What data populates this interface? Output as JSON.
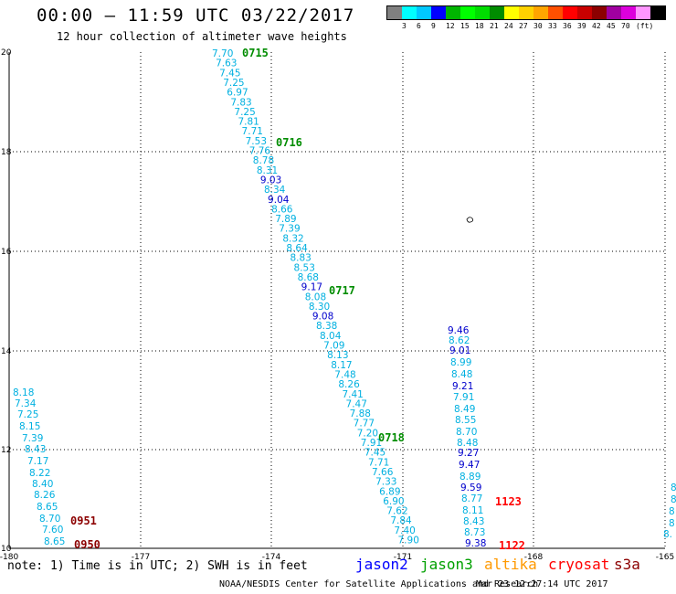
{
  "header": {
    "title": "00:00 – 11:59 UTC 03/22/2017",
    "subtitle": "12 hour collection of altimeter wave heights"
  },
  "color_scale": {
    "colors": [
      "#808080",
      "#00ffff",
      "#00c8ff",
      "#0000ff",
      "#00b400",
      "#00ff00",
      "#00dc00",
      "#008c00",
      "#ffff00",
      "#ffd200",
      "#ffa500",
      "#ff5000",
      "#ff0000",
      "#c80000",
      "#8c0000",
      "#a000a0",
      "#dc00dc",
      "#ff96ff",
      "#000000"
    ],
    "labels": [
      "3",
      "6",
      "9",
      "12",
      "15",
      "18",
      "21",
      "24",
      "27",
      "30",
      "33",
      "36",
      "39",
      "42",
      "45",
      "70",
      "(ft)"
    ]
  },
  "map": {
    "lat_labels": [
      "20",
      "18",
      "16",
      "14",
      "12",
      "10"
    ],
    "lon_labels": [
      "-180",
      "-177",
      "-174",
      "-171",
      "-168",
      "-165"
    ],
    "track_colors": {
      "jason2": "#0000ff",
      "jason3": "#008c00",
      "altika": "#ffa500",
      "cryosat": "#ff0000",
      "s3a": "#8c0000"
    },
    "observations": [
      {
        "v": "7.70",
        "c": "#00b0e0"
      },
      {
        "v": "7.63",
        "c": "#00b0e0"
      },
      {
        "v": "7.45",
        "c": "#00b0e0"
      },
      {
        "v": "7.25",
        "c": "#00b0e0"
      },
      {
        "v": "6.97",
        "c": "#00b0e0"
      },
      {
        "v": "7.83",
        "c": "#00b0e0"
      },
      {
        "v": "7.25",
        "c": "#00b0e0"
      },
      {
        "v": "7.81",
        "c": "#00b0e0"
      },
      {
        "v": "7.71",
        "c": "#00b0e0"
      },
      {
        "v": "7.53",
        "c": "#00b0e0"
      },
      {
        "v": "7.76",
        "c": "#00b0e0"
      },
      {
        "v": "8.78",
        "c": "#00b0e0"
      },
      {
        "v": "8.31",
        "c": "#00b0e0"
      },
      {
        "v": "9.03",
        "c": "#0000cc"
      },
      {
        "v": "8.34",
        "c": "#00b0e0"
      },
      {
        "v": "9.04",
        "c": "#0000cc"
      },
      {
        "v": "8.66",
        "c": "#00b0e0"
      },
      {
        "v": "7.89",
        "c": "#00b0e0"
      },
      {
        "v": "7.39",
        "c": "#00b0e0"
      },
      {
        "v": "8.32",
        "c": "#00b0e0"
      },
      {
        "v": "8.64",
        "c": "#00b0e0"
      },
      {
        "v": "8.83",
        "c": "#00b0e0"
      },
      {
        "v": "8.53",
        "c": "#00b0e0"
      },
      {
        "v": "8.68",
        "c": "#00b0e0"
      },
      {
        "v": "9.17",
        "c": "#0000cc"
      },
      {
        "v": "8.08",
        "c": "#00b0e0"
      },
      {
        "v": "8.30",
        "c": "#00b0e0"
      },
      {
        "v": "9.08",
        "c": "#0000cc"
      },
      {
        "v": "8.38",
        "c": "#00b0e0"
      },
      {
        "v": "8.04",
        "c": "#00b0e0"
      },
      {
        "v": "7.09",
        "c": "#00b0e0"
      },
      {
        "v": "8.13",
        "c": "#00b0e0"
      },
      {
        "v": "8.17",
        "c": "#00b0e0"
      },
      {
        "v": "7.48",
        "c": "#00b0e0"
      },
      {
        "v": "8.26",
        "c": "#00b0e0"
      },
      {
        "v": "7.41",
        "c": "#00b0e0"
      },
      {
        "v": "7.47",
        "c": "#00b0e0"
      },
      {
        "v": "7.88",
        "c": "#00b0e0"
      },
      {
        "v": "7.77",
        "c": "#00b0e0"
      },
      {
        "v": "7.20",
        "c": "#00b0e0"
      },
      {
        "v": "7.91",
        "c": "#00b0e0"
      },
      {
        "v": "7.45",
        "c": "#00b0e0"
      },
      {
        "v": "7.71",
        "c": "#00b0e0"
      },
      {
        "v": "7.66",
        "c": "#00b0e0"
      },
      {
        "v": "7.33",
        "c": "#00b0e0"
      },
      {
        "v": "6.89",
        "c": "#00b0e0"
      },
      {
        "v": "6.90",
        "c": "#00b0e0"
      },
      {
        "v": "7.62",
        "c": "#00b0e0"
      },
      {
        "v": "7.84",
        "c": "#00b0e0"
      },
      {
        "v": "7.40",
        "c": "#00b0e0"
      },
      {
        "v": "7.90",
        "c": "#00b0e0"
      },
      {
        "v": "9.46",
        "c": "#0000cc"
      },
      {
        "v": "8.62",
        "c": "#00b0e0"
      },
      {
        "v": "9.01",
        "c": "#0000cc"
      },
      {
        "v": "8.99",
        "c": "#00b0e0"
      },
      {
        "v": "8.48",
        "c": "#00b0e0"
      },
      {
        "v": "9.21",
        "c": "#0000cc"
      },
      {
        "v": "7.91",
        "c": "#00b0e0"
      },
      {
        "v": "8.49",
        "c": "#00b0e0"
      },
      {
        "v": "8.55",
        "c": "#00b0e0"
      },
      {
        "v": "8.70",
        "c": "#00b0e0"
      },
      {
        "v": "8.48",
        "c": "#00b0e0"
      },
      {
        "v": "9.27",
        "c": "#0000cc"
      },
      {
        "v": "9.47",
        "c": "#0000cc"
      },
      {
        "v": "8.89",
        "c": "#00b0e0"
      },
      {
        "v": "9.59",
        "c": "#0000cc"
      },
      {
        "v": "8.77",
        "c": "#00b0e0"
      },
      {
        "v": "8.11",
        "c": "#00b0e0"
      },
      {
        "v": "8.43",
        "c": "#00b0e0"
      },
      {
        "v": "8.73",
        "c": "#00b0e0"
      },
      {
        "v": "9.38",
        "c": "#0000cc"
      },
      {
        "v": "8.18",
        "c": "#00b0e0"
      },
      {
        "v": "7.34",
        "c": "#00b0e0"
      },
      {
        "v": "7.25",
        "c": "#00b0e0"
      },
      {
        "v": "8.15",
        "c": "#00b0e0"
      },
      {
        "v": "7.39",
        "c": "#00b0e0"
      },
      {
        "v": "8.43",
        "c": "#00b0e0"
      },
      {
        "v": "7.17",
        "c": "#00b0e0"
      },
      {
        "v": "8.22",
        "c": "#00b0e0"
      },
      {
        "v": "8.40",
        "c": "#00b0e0"
      },
      {
        "v": "8.26",
        "c": "#00b0e0"
      },
      {
        "v": "8.65",
        "c": "#00b0e0"
      },
      {
        "v": "8.70",
        "c": "#00b0e0"
      },
      {
        "v": "7.60",
        "c": "#00b0e0"
      },
      {
        "v": "8.65",
        "c": "#00b0e0"
      },
      {
        "v": "8",
        "c": "#00b0e0"
      },
      {
        "v": "8",
        "c": "#00b0e0"
      },
      {
        "v": "8",
        "c": "#00b0e0"
      },
      {
        "v": "8",
        "c": "#00b0e0"
      },
      {
        "v": "8.",
        "c": "#00b0e0"
      }
    ],
    "passes": [
      {
        "t": "0715",
        "c": "#008c00"
      },
      {
        "t": "0716",
        "c": "#008c00"
      },
      {
        "t": "0717",
        "c": "#008c00"
      },
      {
        "t": "0718",
        "c": "#008c00"
      },
      {
        "t": "1123",
        "c": "#ff0000"
      },
      {
        "t": "1122",
        "c": "#ff0000"
      },
      {
        "t": "0951",
        "c": "#8c0000"
      },
      {
        "t": "0950",
        "c": "#8c0000"
      }
    ]
  },
  "footer": {
    "note": "note: 1) Time is in UTC; 2) SWH is in feet",
    "satellites": [
      {
        "name": "jason2",
        "color": "#0000ff"
      },
      {
        "name": "jason3",
        "color": "#00a000"
      },
      {
        "name": "altika",
        "color": "#ff9900"
      },
      {
        "name": "cryosat",
        "color": "#ff0000"
      },
      {
        "name": "s3a",
        "color": "#8c0000"
      }
    ],
    "credit": "NOAA/NESDIS Center for Satellite Applications and Research",
    "timestamp": "Mar 23 12:27:14 UTC 2017"
  }
}
